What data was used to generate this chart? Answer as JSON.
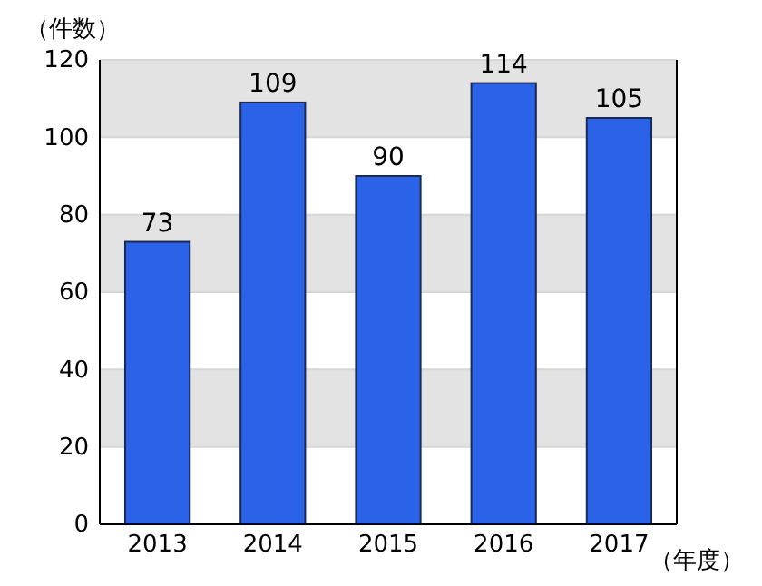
{
  "chart_data": {
    "type": "bar",
    "ylabel": "（件数）",
    "xlabel": "（年度）",
    "categories": [
      "2013",
      "2014",
      "2015",
      "2016",
      "2017"
    ],
    "values": [
      73,
      109,
      90,
      114,
      105
    ],
    "color": "#2b63e8",
    "ylim": [
      0,
      120
    ],
    "yticks": [
      0,
      20,
      40,
      60,
      80,
      100,
      120
    ],
    "grid": "y",
    "data_labels": true
  }
}
